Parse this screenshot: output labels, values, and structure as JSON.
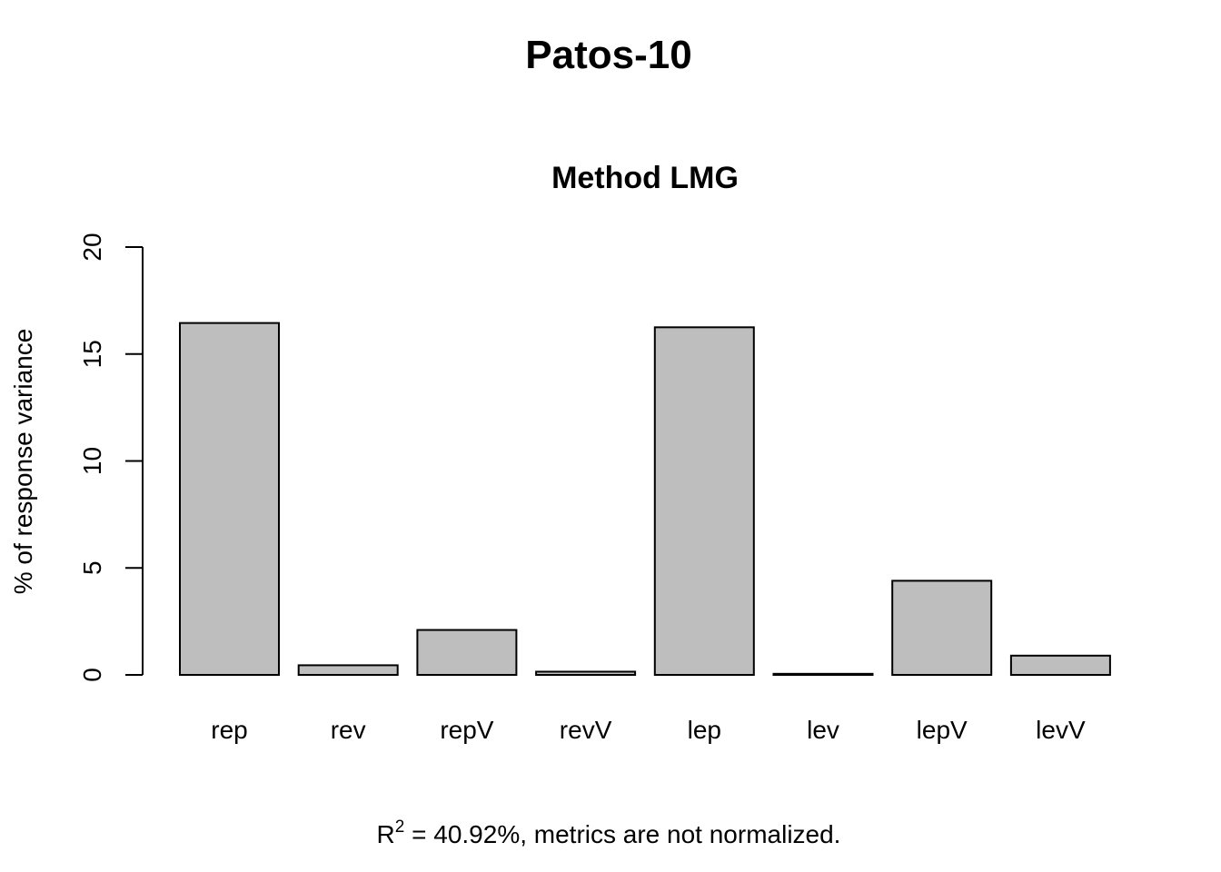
{
  "chart_data": {
    "type": "bar",
    "title": "Patos-10",
    "subtitle": "Method LMG",
    "xlabel": "",
    "ylabel": "% of response variance",
    "categories": [
      "rep",
      "rev",
      "repV",
      "revV",
      "lep",
      "lev",
      "lepV",
      "levV"
    ],
    "values": [
      16.45,
      0.45,
      2.1,
      0.15,
      16.25,
      0.05,
      4.4,
      0.9
    ],
    "ylim": [
      0,
      20
    ],
    "yticks": [
      "0",
      "5",
      "10",
      "15",
      "20"
    ],
    "grid": false,
    "bar_color": "#bebebe",
    "footnote": {
      "r_label": "R",
      "r_superscript": "2",
      "text": " = 40.92%, metrics are not normalized."
    }
  }
}
